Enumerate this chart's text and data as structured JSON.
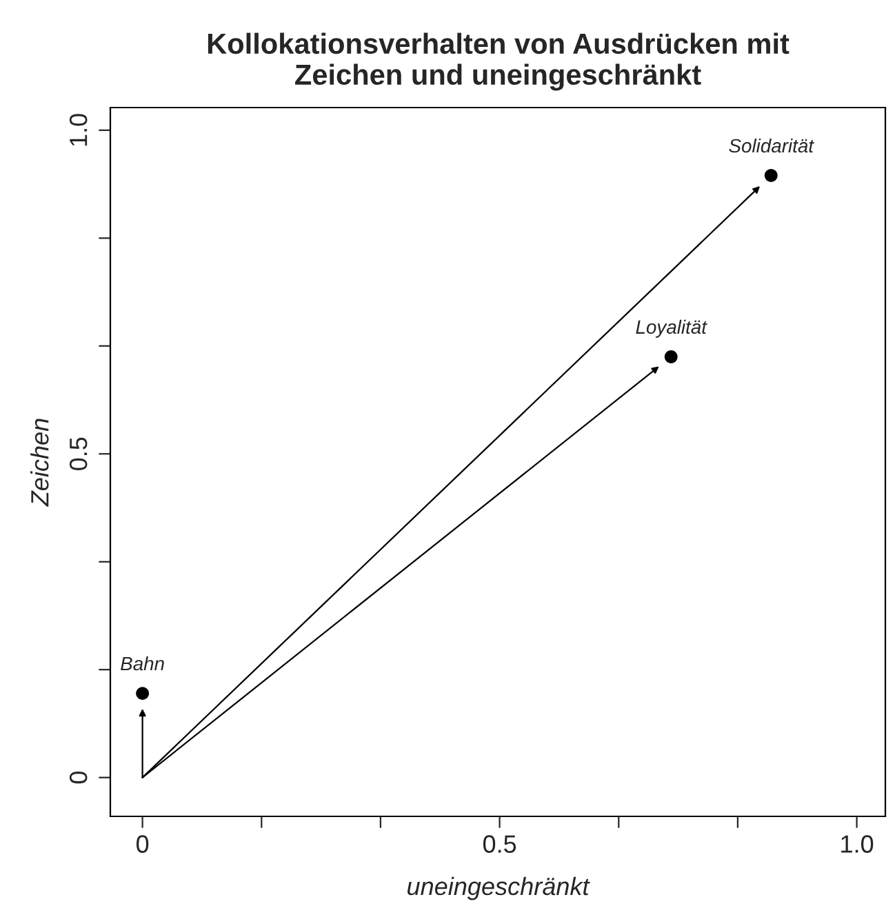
{
  "chart_data": {
    "type": "scatter",
    "title": "Kollokationsverhalten von Ausdrücken mit\nZeichen und uneingeschränkt",
    "xlabel": "uneingeschränkt",
    "ylabel": "Zeichen",
    "series": [
      {
        "color": "#000000",
        "x": [
          0.0,
          0.74,
          0.88
        ],
        "values": [
          0.13,
          0.65,
          0.93
        ]
      }
    ],
    "annotations": [
      {
        "text": "Bahn",
        "x": 0.0,
        "y": 0.13
      },
      {
        "text": "Loyalität",
        "x": 0.74,
        "y": 0.65
      },
      {
        "text": "Solidarität",
        "x": 0.88,
        "y": 0.93
      }
    ],
    "xlim": [
      -0.045,
      1.04
    ],
    "ylim": [
      -0.06,
      1.035
    ],
    "xticks": [
      0,
      {
        "value": 0.1667,
        "label": null
      },
      {
        "value": 0.3333,
        "label": null
      },
      0.5,
      {
        "value": 0.6667,
        "label": null
      },
      {
        "value": 0.8333,
        "label": null
      },
      {
        "value": 1,
        "label": "1.0"
      }
    ],
    "yticks": [
      0,
      {
        "value": 0.1667,
        "label": null
      },
      {
        "value": 0.3333,
        "label": null
      },
      0.5,
      {
        "value": 0.6667,
        "label": null
      },
      {
        "value": 0.8333,
        "label": null
      },
      {
        "value": 1,
        "label": "1.0"
      }
    ],
    "marker": "circle",
    "grid": false
  }
}
